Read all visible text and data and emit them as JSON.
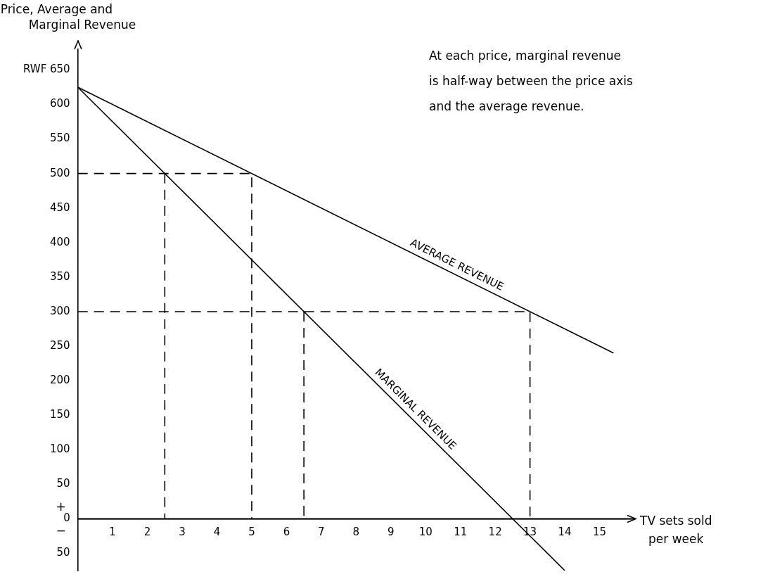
{
  "chart_data": {
    "type": "line",
    "ylabel": "Price, Average and Marginal Revenue",
    "xlabel": "TV sets sold per week",
    "annotations": [
      "At each price, marginal revenue is half-way between the price axis and the average revenue.",
      "+",
      "−"
    ],
    "xlim": [
      0,
      16
    ],
    "xticks": [
      1,
      2,
      3,
      4,
      5,
      6,
      7,
      8,
      9,
      10,
      11,
      12,
      13,
      14,
      15
    ],
    "ylim": [
      -75,
      680
    ],
    "yticks": [
      {
        "value": -50,
        "label": "50"
      },
      0,
      50,
      100,
      150,
      200,
      250,
      300,
      350,
      400,
      450,
      500,
      550,
      600,
      {
        "value": 650,
        "label": "RWF 650"
      }
    ],
    "grid": false,
    "legend": false,
    "marker": "none",
    "series": [
      {
        "name": "AVERAGE REVENUE",
        "color": "#000000",
        "line_style": "solid",
        "x": [
          0,
          15.4
        ],
        "values": [
          625,
          240
        ]
      },
      {
        "name": "MARGINAL REVENUE",
        "color": "#000000",
        "line_style": "solid",
        "x": [
          0,
          14
        ],
        "values": [
          625,
          -75
        ]
      },
      {
        "color": "#000000",
        "line_style": "dashed",
        "x": [
          0,
          5,
          5
        ],
        "values": [
          500,
          500,
          0
        ]
      },
      {
        "color": "#000000",
        "line_style": "dashed",
        "x": [
          2.5,
          2.5
        ],
        "values": [
          500,
          0
        ]
      },
      {
        "color": "#000000",
        "line_style": "dashed",
        "x": [
          0,
          13,
          13
        ],
        "values": [
          300,
          300,
          0
        ]
      },
      {
        "color": "#000000",
        "line_style": "dashed",
        "x": [
          6.5,
          6.5
        ],
        "values": [
          300,
          0
        ]
      }
    ]
  }
}
